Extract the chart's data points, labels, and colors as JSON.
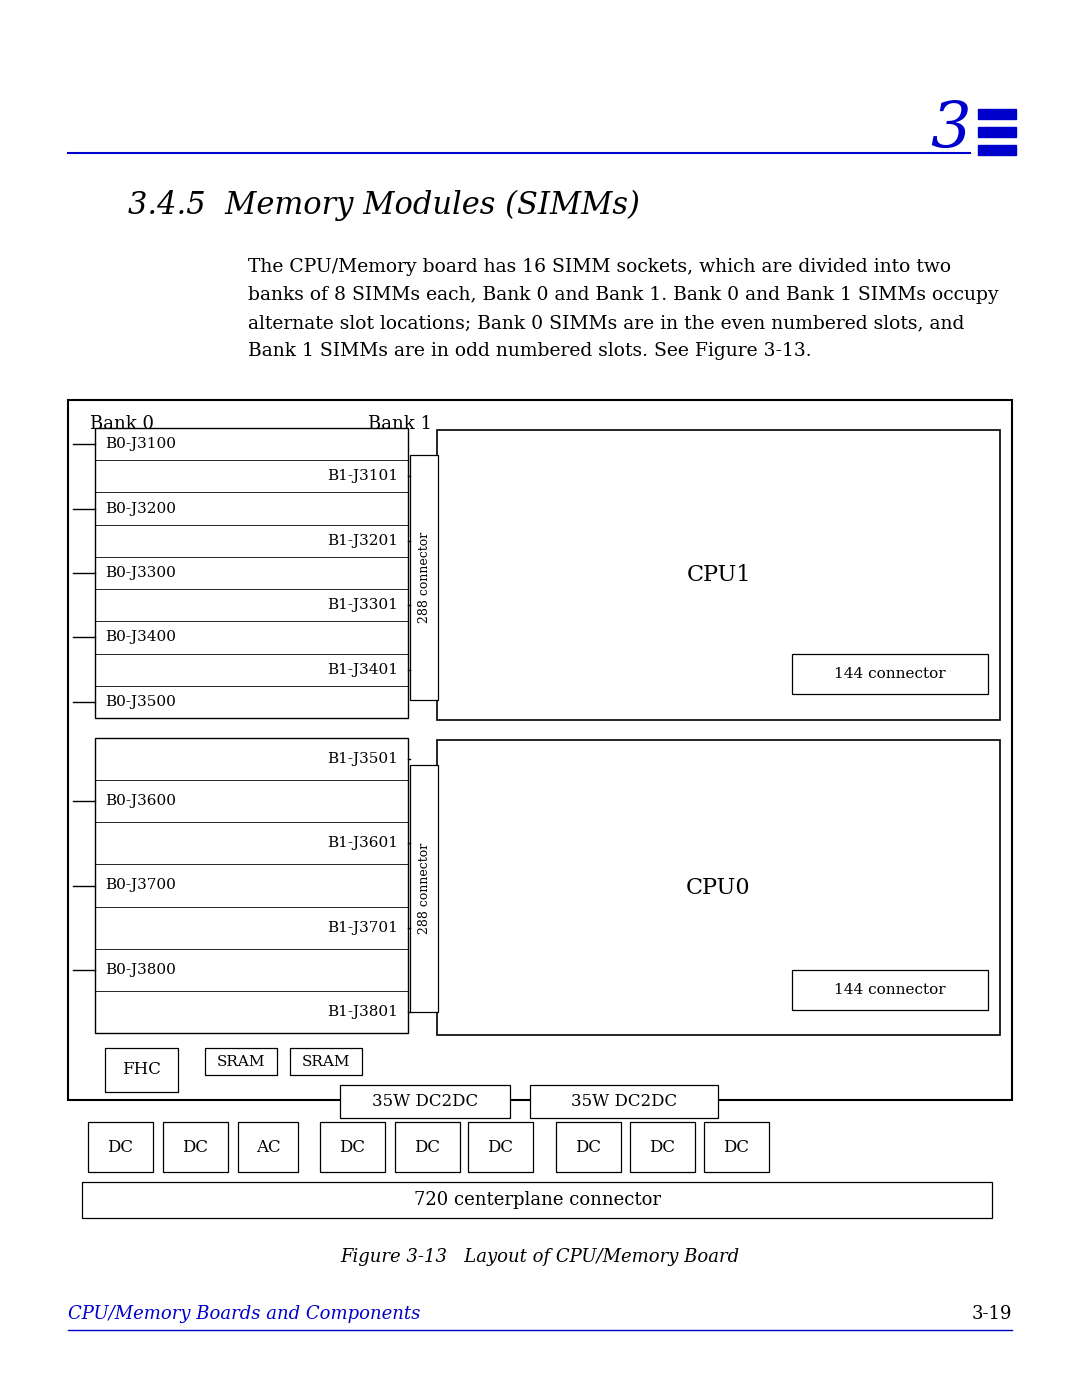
{
  "bg_color": "#ffffff",
  "text_color": "#000000",
  "blue_color": "#0000cc",
  "fig_width": 10.8,
  "fig_height": 13.97,
  "chapter_num": "3",
  "section_title": "3.4.5  Memory Modules (SIMMs)",
  "body_text_lines": [
    "The CPU/Memory board has 16 SIMM sockets, which are divided into two",
    "banks of 8 SIMMs each, Bank 0 and Bank 1. Bank 0 and Bank 1 SIMMs occupy",
    "alternate slot locations; Bank 0 SIMMs are in the even numbered slots, and",
    "Bank 1 SIMMs are in odd numbered slots. See Figure 3-13."
  ],
  "fig_caption": "Figure 3-13   Layout of CPU/Memory Board",
  "footer_left": "CPU/Memory Boards and Components",
  "footer_right": "3-19"
}
